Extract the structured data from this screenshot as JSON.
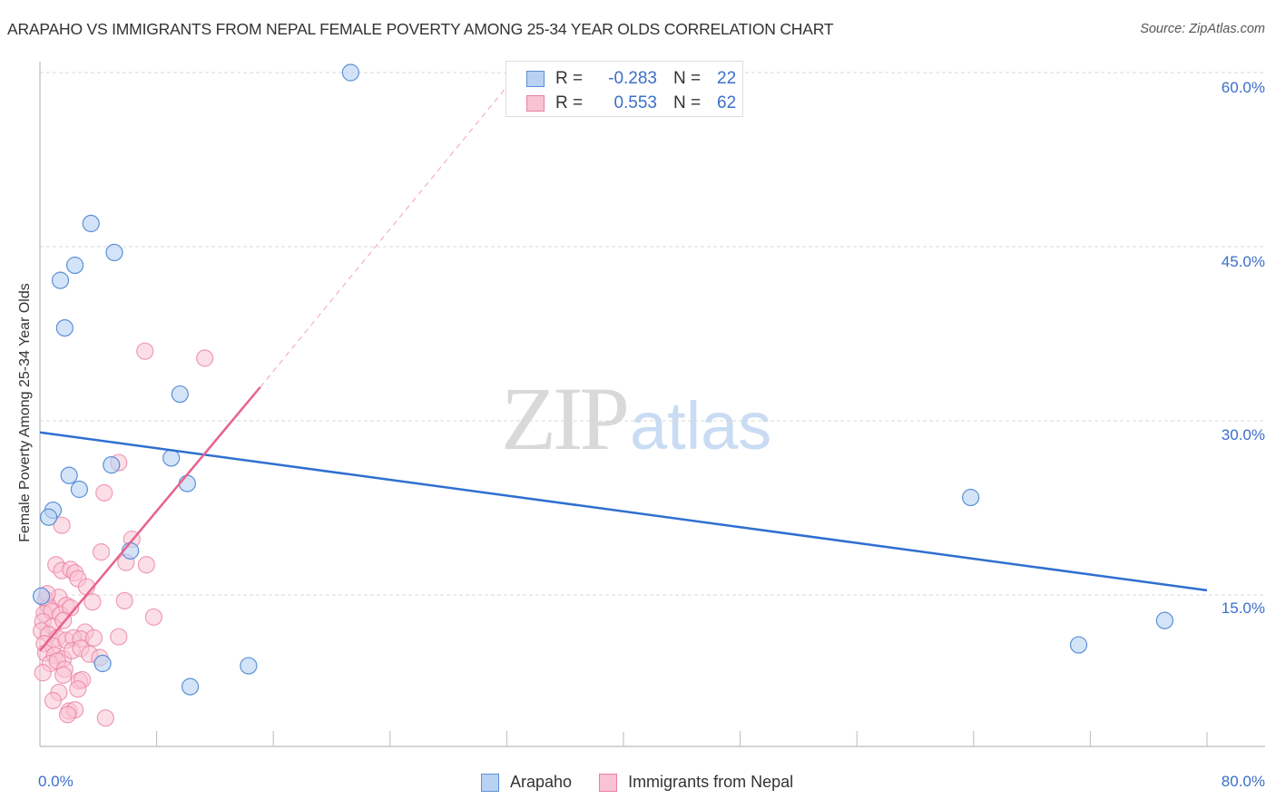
{
  "header": {
    "title": "ARAPAHO VS IMMIGRANTS FROM NEPAL FEMALE POVERTY AMONG 25-34 YEAR OLDS CORRELATION CHART",
    "source": "Source: ZipAtlas.com"
  },
  "watermark": {
    "zip": "ZIP",
    "atlas": "atlas"
  },
  "colors": {
    "arapaho_fill": "#b8d2f3",
    "arapaho_stroke": "#5b8fd6",
    "arapaho_line": "#2f6fd0",
    "nepal_fill": "#f9c3d3",
    "nepal_stroke": "#ea7fa0",
    "nepal_line": "#e8628c",
    "tick_text": "#3b6fc9",
    "grid": "#d8d8d8"
  },
  "legend_top": {
    "rows": [
      {
        "series": "Arapaho",
        "r_label": "R =",
        "r_value": "-0.283",
        "n_label": "N =",
        "n_value": "22"
      },
      {
        "series": "Immigrants from Nepal",
        "r_label": "R =",
        "r_value": "0.553",
        "n_label": "N =",
        "n_value": "62"
      }
    ]
  },
  "legend_bottom": {
    "items": [
      {
        "label": "Arapaho"
      },
      {
        "label": "Immigrants from Nepal"
      }
    ]
  },
  "axes": {
    "ylabel": "Female Poverty Among 25-34 Year Olds",
    "yticks": [
      "60.0%",
      "45.0%",
      "30.0%",
      "15.0%"
    ],
    "xticks": [
      "0.0%",
      "80.0%"
    ]
  },
  "chart_data": {
    "type": "scatter",
    "title": "ARAPAHO VS IMMIGRANTS FROM NEPAL FEMALE POVERTY AMONG 25-34 YEAR OLDS CORRELATION CHART",
    "xlabel": "",
    "ylabel": "Female Poverty Among 25-34 Year Olds",
    "xlim": [
      0,
      80
    ],
    "ylim": [
      2,
      62
    ],
    "x_tick_labels": [
      "0.0%",
      "80.0%"
    ],
    "y_tick_values": [
      15,
      30,
      45,
      60
    ],
    "y_tick_labels": [
      "15.0%",
      "30.0%",
      "45.0%",
      "60.0%"
    ],
    "grid": "horizontal dashed",
    "legend_position": "bottom",
    "series": [
      {
        "name": "Arapaho",
        "color": "#5b8fd6",
        "R": -0.283,
        "N": 22,
        "points": [
          [
            21.3,
            60.0
          ],
          [
            3.5,
            47.0
          ],
          [
            5.1,
            44.5
          ],
          [
            2.4,
            43.4
          ],
          [
            1.4,
            42.1
          ],
          [
            1.7,
            38.0
          ],
          [
            9.6,
            32.3
          ],
          [
            9.0,
            26.8
          ],
          [
            4.9,
            26.2
          ],
          [
            2.0,
            25.3
          ],
          [
            2.7,
            24.1
          ],
          [
            10.1,
            24.6
          ],
          [
            0.9,
            22.3
          ],
          [
            0.6,
            21.7
          ],
          [
            6.2,
            18.8
          ],
          [
            63.8,
            23.4
          ],
          [
            71.2,
            10.7
          ],
          [
            77.1,
            12.8
          ],
          [
            4.3,
            9.1
          ],
          [
            14.3,
            8.9
          ],
          [
            10.3,
            7.1
          ],
          [
            0.1,
            14.9
          ]
        ],
        "trend_line": {
          "x": [
            0,
            80
          ],
          "y": [
            29.0,
            15.4
          ]
        }
      },
      {
        "name": "Immigrants from Nepal",
        "color": "#ea7fa0",
        "R": 0.553,
        "N": 62,
        "points": [
          [
            7.2,
            36.0
          ],
          [
            11.3,
            35.4
          ],
          [
            5.4,
            26.4
          ],
          [
            4.4,
            23.8
          ],
          [
            1.5,
            21.0
          ],
          [
            6.3,
            19.8
          ],
          [
            4.2,
            18.7
          ],
          [
            1.1,
            17.6
          ],
          [
            1.5,
            17.1
          ],
          [
            2.1,
            17.2
          ],
          [
            2.4,
            16.9
          ],
          [
            2.6,
            16.4
          ],
          [
            5.9,
            17.8
          ],
          [
            7.3,
            17.6
          ],
          [
            3.6,
            14.4
          ],
          [
            5.8,
            14.5
          ],
          [
            1.3,
            14.8
          ],
          [
            0.4,
            14.6
          ],
          [
            0.6,
            14.0
          ],
          [
            1.8,
            14.1
          ],
          [
            0.3,
            13.4
          ],
          [
            0.8,
            13.6
          ],
          [
            1.4,
            13.3
          ],
          [
            2.1,
            13.9
          ],
          [
            0.2,
            12.7
          ],
          [
            0.9,
            12.3
          ],
          [
            1.6,
            12.8
          ],
          [
            7.8,
            13.1
          ],
          [
            0.1,
            11.9
          ],
          [
            0.6,
            11.6
          ],
          [
            1.2,
            11.3
          ],
          [
            3.1,
            11.8
          ],
          [
            0.3,
            10.8
          ],
          [
            0.9,
            10.6
          ],
          [
            1.8,
            11.1
          ],
          [
            2.3,
            11.3
          ],
          [
            2.8,
            11.2
          ],
          [
            3.7,
            11.3
          ],
          [
            5.4,
            11.4
          ],
          [
            0.4,
            10.0
          ],
          [
            1.0,
            9.8
          ],
          [
            1.6,
            9.5
          ],
          [
            2.2,
            10.2
          ],
          [
            2.8,
            10.4
          ],
          [
            3.4,
            9.9
          ],
          [
            4.1,
            9.6
          ],
          [
            0.7,
            9.1
          ],
          [
            1.2,
            9.3
          ],
          [
            1.7,
            8.6
          ],
          [
            0.2,
            8.3
          ],
          [
            1.6,
            8.1
          ],
          [
            2.7,
            7.6
          ],
          [
            2.9,
            7.7
          ],
          [
            2.6,
            6.9
          ],
          [
            1.3,
            6.6
          ],
          [
            0.9,
            5.9
          ],
          [
            2.0,
            5.0
          ],
          [
            2.4,
            5.1
          ],
          [
            4.5,
            4.4
          ],
          [
            1.9,
            4.7
          ],
          [
            0.5,
            15.1
          ],
          [
            3.2,
            15.7
          ]
        ],
        "trend_line": {
          "x": [
            0,
            15.1
          ],
          "y": [
            10.2,
            32.9
          ],
          "dashed_extension": {
            "x": [
              15.1,
              32.8
            ],
            "y": [
              32.9,
              60.0
            ]
          }
        }
      }
    ]
  }
}
